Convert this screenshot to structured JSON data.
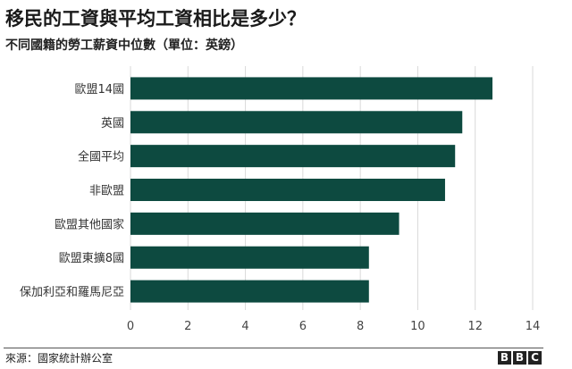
{
  "header": {
    "title": "移民的工資與平均工資相比是多少？",
    "subtitle": "不同國籍的勞工薪資中位數（單位：英鎊）"
  },
  "footer": {
    "source": "來源：國家統計辦公室",
    "logo_letters": [
      "B",
      "B",
      "C"
    ]
  },
  "chart_data": {
    "type": "bar",
    "orientation": "horizontal",
    "categories": [
      "歐盟14國",
      "英國",
      "全國平均",
      "非歐盟",
      "歐盟其他國家",
      "歐盟東擴8國",
      "保加利亞和羅馬尼亞"
    ],
    "values": [
      12.6,
      11.55,
      11.3,
      10.95,
      9.35,
      8.3,
      8.3
    ],
    "xlim": [
      0,
      14
    ],
    "xticks": [
      0,
      2,
      4,
      6,
      8,
      10,
      12,
      14
    ],
    "grid": true,
    "bar_color": "#0d4a40",
    "grid_color": "#d9d9d9"
  }
}
